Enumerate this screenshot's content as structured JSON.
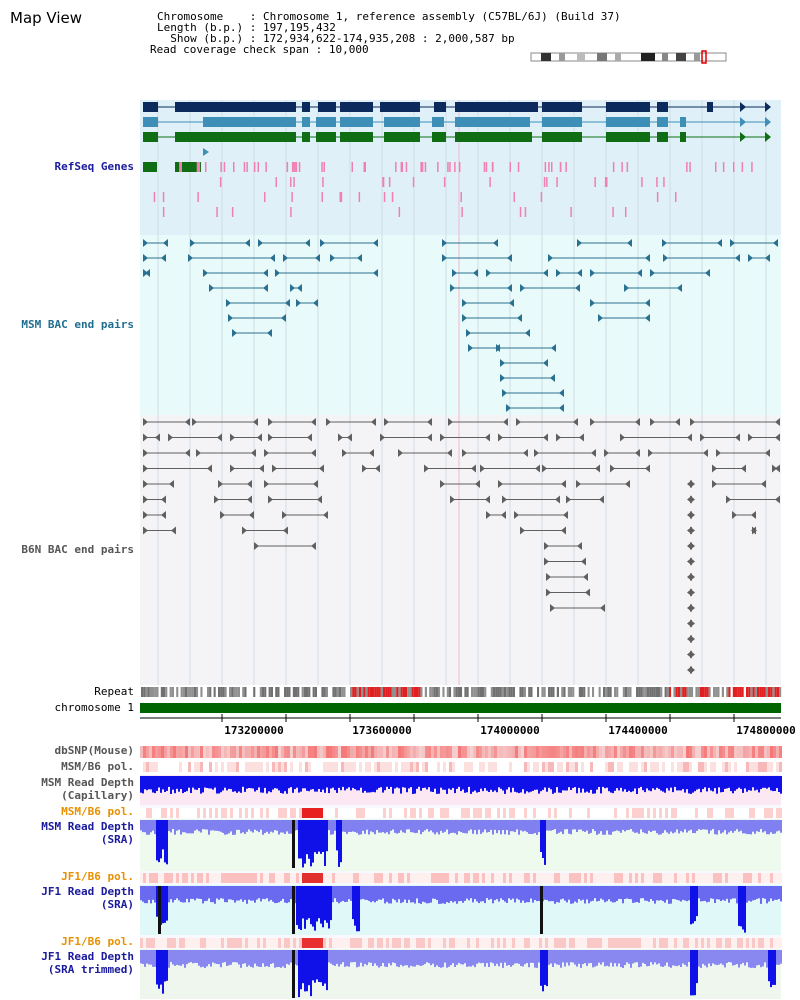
{
  "title": "Map View",
  "info": {
    "chromosome_label": "Chromosome",
    "chromosome_value": "Chromosome 1, reference assembly (C57BL/6J) (Build 37)",
    "length_label": "Length (b.p.)",
    "length_value": "197,195,432",
    "show_label": "Show (b.p.)",
    "show_value": "172,934,622-174,935,208 : 2,000,587 bp",
    "coverage_label": "Read coverage check span",
    "coverage_value": "10,000"
  },
  "tracks": {
    "refseq": "RefSeq Genes",
    "msm_bac": "MSM BAC end pairs",
    "b6n_bac": "B6N BAC end pairs",
    "repeat": "Repeat",
    "chromosome": "chromosome 1",
    "dbsnp": "dbSNP(Mouse)",
    "msm_b6_pol_1": "MSM/B6 pol.",
    "msm_depth_cap_1": "MSM Read Depth",
    "msm_depth_cap_2": "(Capillary)",
    "msm_b6_pol_2": "MSM/B6 pol.",
    "msm_depth_sra_1": "MSM Read Depth",
    "msm_depth_sra_2": "(SRA)",
    "jf1_b6_pol_1": "JF1/B6 pol.",
    "jf1_depth_sra_1": "JF1 Read Depth",
    "jf1_depth_sra_2": "(SRA)",
    "jf1_b6_pol_2": "JF1/B6 pol.",
    "jf1_depth_trim_1": "JF1 Read Depth",
    "jf1_depth_trim_2": "(SRA trimmed)"
  },
  "axis": {
    "ticks": [
      "173200000",
      "173600000",
      "174000000",
      "174400000",
      "174800000"
    ]
  },
  "colors": {
    "refseq_bg": "#dff0f8",
    "bac_bg": "#e8fafa",
    "b6n_bg": "#f2f2f4",
    "gene_dark": "#0d2a5c",
    "gene_mid": "#3d8fb8",
    "gene_green": "#0f6e14",
    "chromosome_bar": "#006400",
    "depth_blue": "#1414ee"
  }
}
